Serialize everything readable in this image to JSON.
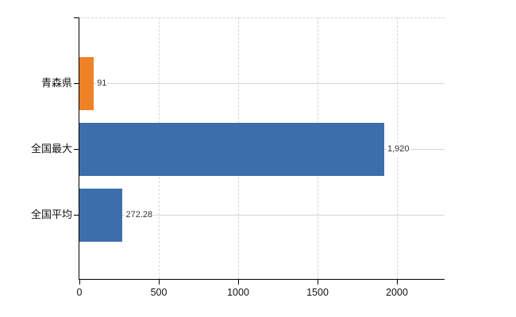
{
  "chart_data": {
    "type": "bar",
    "orientation": "horizontal",
    "title": "",
    "categories": [
      "青森県",
      "全国最大",
      "全国平均"
    ],
    "values": [
      91,
      1920,
      272.28
    ],
    "value_labels": [
      "91",
      "1,920",
      "272.28"
    ],
    "series_colors": [
      "#ee8227",
      "#3d6eac",
      "#3d6eac"
    ],
    "x_ticks": [
      0,
      500,
      1000,
      1500,
      2000
    ],
    "x_tick_labels": [
      "0",
      "500",
      "1000",
      "1500",
      "2000"
    ],
    "xlim": [
      0,
      2300
    ],
    "grid": "on",
    "legend": "none"
  },
  "colors": {
    "background": "#ffffff",
    "bar_orange": "#ee8227",
    "bar_blue": "#3d6eac",
    "axis": "#000000",
    "gridline": "#d6d6d6",
    "value_label": "#333333",
    "tick_label": "#111111"
  }
}
